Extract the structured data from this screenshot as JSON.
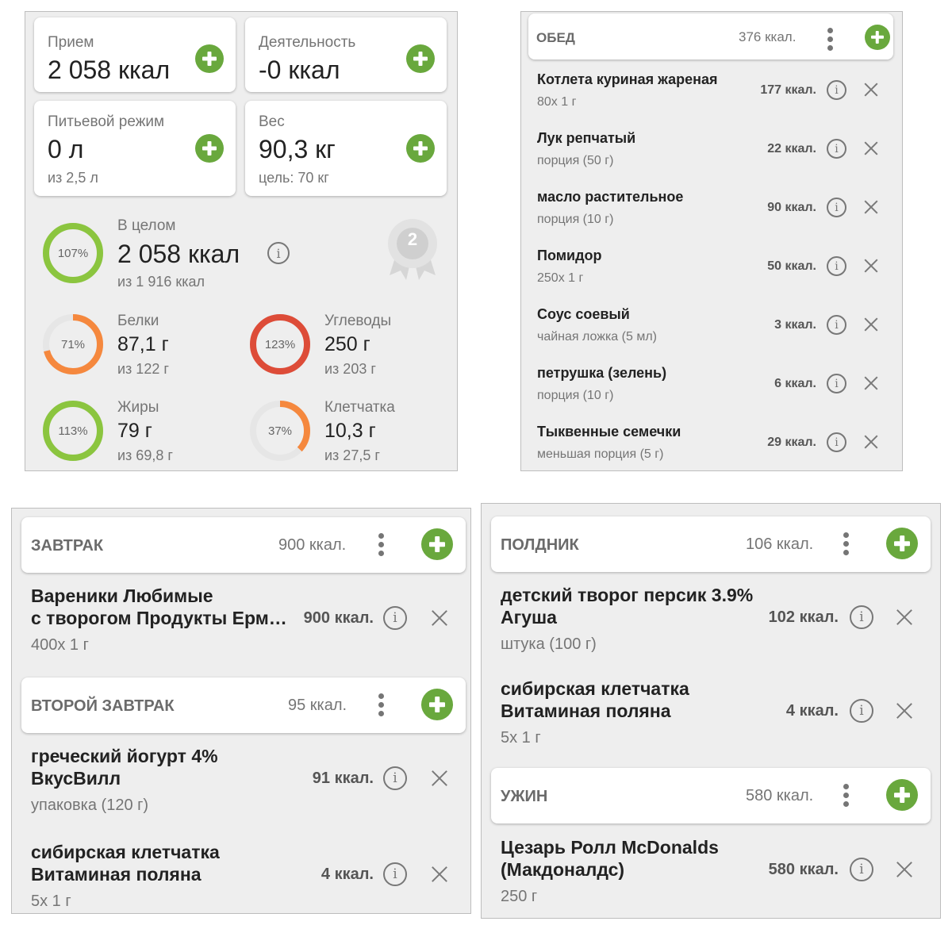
{
  "summary": {
    "intake": {
      "label": "Прием",
      "value": "2 058 ккал"
    },
    "activity": {
      "label": "Деятельность",
      "value": "-0 ккал"
    },
    "water": {
      "label": "Питьевой режим",
      "value": "0 л",
      "sub": "из 2,5 л"
    },
    "weight": {
      "label": "Вес",
      "value": "90,3 кг",
      "sub": "цель: 70 кг"
    },
    "total": {
      "label": "В целом",
      "value": "2 058 ккал",
      "sub": "из 1 916 ккал",
      "percent": "107%",
      "fraction": 1.07,
      "color": "#8bc53f"
    },
    "badge_number": "2",
    "macros": [
      {
        "label": "Белки",
        "value": "87,1 г",
        "sub": "из 122 г",
        "percent": "71%",
        "fraction": 0.71,
        "color": "#f5883e"
      },
      {
        "label": "Углеводы",
        "value": "250 г",
        "sub": "из 203 г",
        "percent": "123%",
        "fraction": 1.23,
        "color": "#dd4c38"
      },
      {
        "label": "Жиры",
        "value": "79 г",
        "sub": "из 69,8 г",
        "percent": "113%",
        "fraction": 1.13,
        "color": "#8bc53f"
      },
      {
        "label": "Клетчатка",
        "value": "10,3 г",
        "sub": "из 27,5 г",
        "percent": "37%",
        "fraction": 0.37,
        "color": "#f5883e"
      }
    ]
  },
  "lunch": {
    "title": "ОБЕД",
    "kcal": "376 ккал.",
    "items": [
      {
        "name": "Котлета куриная жареная",
        "portion": "80x 1 г",
        "kcal": "177 ккал."
      },
      {
        "name": "Лук репчатый",
        "portion": "порция (50 г)",
        "kcal": "22 ккал."
      },
      {
        "name": "масло растительное",
        "portion": "порция (10 г)",
        "kcal": "90 ккал."
      },
      {
        "name": "Помидор",
        "portion": "250x 1 г",
        "kcal": "50 ккал."
      },
      {
        "name": "Соус соевый",
        "portion": "чайная ложка (5 мл)",
        "kcal": "3 ккал."
      },
      {
        "name": "петрушка (зелень)",
        "portion": "порция (10 г)",
        "kcal": "6 ккал."
      },
      {
        "name": "Тыквенные семечки",
        "portion": "меньшая порция (5 г)",
        "kcal": "29 ккал."
      }
    ]
  },
  "breakfast": {
    "title": "ЗАВТРАК",
    "kcal": "900 ккал.",
    "items": [
      {
        "name1": "Вареники Любимые",
        "name2": "с творогом Продукты Ерм…",
        "portion": "400x 1 г",
        "kcal": "900 ккал."
      }
    ]
  },
  "second_breakfast": {
    "title": "ВТОРОЙ ЗАВТРАК",
    "kcal": "95 ккал.",
    "items": [
      {
        "name1": "греческий йогурт 4%",
        "name2": "ВкусВилл",
        "portion": "упаковка (120 г)",
        "kcal": "91 ккал."
      },
      {
        "name1": "сибирская клетчатка",
        "name2": "Витаминая поляна",
        "portion": "5x 1 г",
        "kcal": "4 ккал."
      }
    ]
  },
  "snack": {
    "title": "ПОЛДНИК",
    "kcal": "106 ккал.",
    "items": [
      {
        "name1": "детский творог персик 3.9%",
        "name2": "Агуша",
        "portion": "штука (100 г)",
        "kcal": "102 ккал."
      },
      {
        "name1": "сибирская клетчатка",
        "name2": "Витаминая поляна",
        "portion": "5x 1 г",
        "kcal": "4 ккал."
      }
    ]
  },
  "dinner": {
    "title": "УЖИН",
    "kcal": "580 ккал.",
    "items": [
      {
        "name1": "Цезарь Ролл McDonalds",
        "name2": "(Макдоналдс)",
        "portion": "250 г",
        "kcal": "580 ккал."
      }
    ]
  },
  "colors": {
    "accent": "#69a83d",
    "ring_track": "#e6e6e6"
  }
}
